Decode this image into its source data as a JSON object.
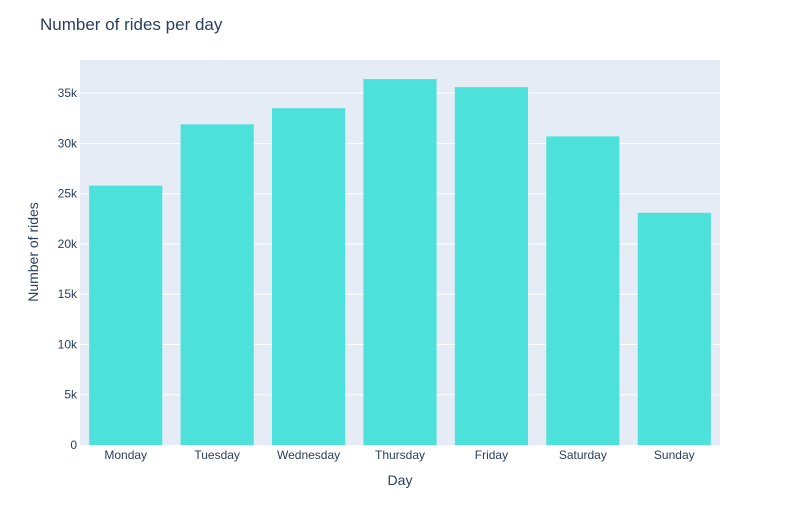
{
  "chart_data": {
    "type": "bar",
    "title": "Number of rides per day",
    "xlabel": "Day",
    "ylabel": "Number of rides",
    "categories": [
      "Monday",
      "Tuesday",
      "Wednesday",
      "Thursday",
      "Friday",
      "Saturday",
      "Sunday"
    ],
    "values": [
      25800,
      31900,
      33500,
      36400,
      35600,
      30700,
      23100
    ],
    "ylim": [
      0,
      38300
    ],
    "yticks": [
      0,
      5000,
      10000,
      15000,
      20000,
      25000,
      30000,
      35000
    ],
    "ytick_labels": [
      "0",
      "5k",
      "10k",
      "15k",
      "20k",
      "25k",
      "30k",
      "35k"
    ],
    "grid": true,
    "legend": "none",
    "bar_color": "#4ce1da",
    "plot_bg_color": "#e5ecf6",
    "text_color": "#2a3f5f"
  }
}
